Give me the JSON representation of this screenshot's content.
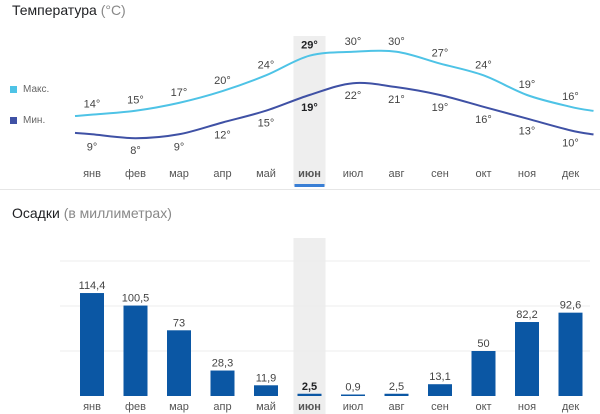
{
  "temperature_section": {
    "title": "Температура",
    "unit_note": "(°C)",
    "legend_max": "Макс.",
    "legend_min": "Мин."
  },
  "precip_section": {
    "title": "Осадки",
    "unit_note": "(в миллиметрах)"
  },
  "colors": {
    "max_line": "#4ec3e6",
    "min_line": "#3f51a5",
    "bar": "#0b57a4",
    "highlight_band": "#eeeeee",
    "selected_underline": "#3a7fd5"
  },
  "selected_month": "июн",
  "chart_data": [
    {
      "type": "line",
      "title": "Температура (°C)",
      "categories": [
        "янв",
        "фев",
        "мар",
        "апр",
        "май",
        "июн",
        "июл",
        "авг",
        "сен",
        "окт",
        "ноя",
        "дек"
      ],
      "series": [
        {
          "name": "Макс.",
          "values": [
            14,
            15,
            17,
            20,
            24,
            29,
            30,
            30,
            27,
            24,
            19,
            16
          ],
          "labels": [
            "14°",
            "15°",
            "17°",
            "20°",
            "24°",
            "29°",
            "30°",
            "30°",
            "27°",
            "24°",
            "19°",
            "16°"
          ]
        },
        {
          "name": "Мин.",
          "values": [
            9,
            8,
            9,
            12,
            15,
            19,
            22,
            21,
            19,
            16,
            13,
            10
          ],
          "labels": [
            "9°",
            "8°",
            "9°",
            "12°",
            "15°",
            "19°",
            "22°",
            "21°",
            "19°",
            "16°",
            "13°",
            "10°"
          ]
        }
      ],
      "grid": false
    },
    {
      "type": "bar",
      "title": "Осадки (в миллиметрах)",
      "categories": [
        "янв",
        "фев",
        "мар",
        "апр",
        "май",
        "июн",
        "июл",
        "авг",
        "сен",
        "окт",
        "ноя",
        "дек"
      ],
      "values": [
        114.4,
        100.5,
        73,
        28.3,
        11.9,
        2.5,
        0.9,
        2.5,
        13.1,
        50,
        82.2,
        92.6
      ],
      "labels": [
        "114,4",
        "100,5",
        "73",
        "28,3",
        "11,9",
        "2,5",
        "0,9",
        "2,5",
        "13,1",
        "50",
        "82,2",
        "92,6"
      ],
      "grid": true
    }
  ]
}
